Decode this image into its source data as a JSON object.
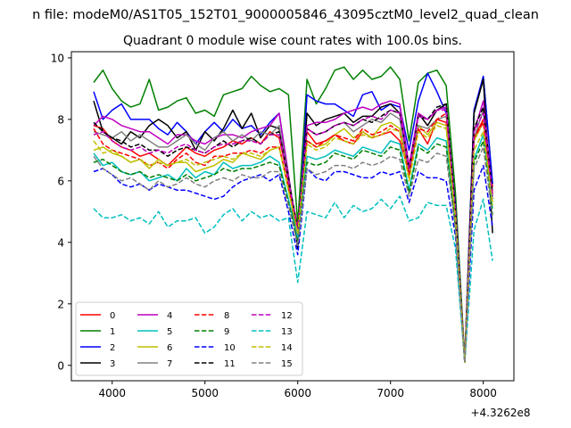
{
  "chart_data": {
    "type": "line",
    "suptitle": "n file: modeM0/AS1T05_152T01_9000005846_43095cztM0_level2_quad_clean",
    "title": "Quadrant 0 module wise count rates with 100.0s bins.",
    "xlabel": "",
    "ylabel": "",
    "x_offset_label": "+4.3262e8",
    "xlim": [
      3560,
      8330
    ],
    "ylim": [
      -0.5,
      10.2
    ],
    "xticks": [
      4000,
      5000,
      6000,
      7000,
      8000
    ],
    "yticks": [
      0,
      2,
      4,
      6,
      8,
      10
    ],
    "legend_position": "lower-left",
    "x": [
      3800,
      3900,
      4000,
      4100,
      4200,
      4300,
      4400,
      4500,
      4600,
      4700,
      4800,
      4900,
      5000,
      5100,
      5200,
      5300,
      5400,
      5500,
      5600,
      5700,
      5800,
      5900,
      6000,
      6100,
      6200,
      6300,
      6400,
      6500,
      6600,
      6700,
      6800,
      6900,
      7000,
      7100,
      7200,
      7300,
      7400,
      7500,
      7600,
      7700,
      7800,
      7900,
      8000,
      8100
    ],
    "series": [
      {
        "name": "0",
        "color": "#ff0000",
        "dash": "solid",
        "values": [
          7.8,
          7.7,
          7.3,
          7.1,
          7.0,
          6.8,
          6.9,
          6.7,
          6.5,
          6.8,
          7.1,
          6.9,
          6.8,
          7.0,
          7.1,
          7.3,
          7.2,
          7.4,
          7.2,
          7.6,
          7.4,
          6.0,
          4.5,
          7.6,
          7.2,
          7.3,
          7.5,
          7.3,
          7.2,
          7.6,
          7.4,
          7.5,
          7.6,
          7.3,
          6.3,
          7.7,
          7.2,
          8.0,
          7.9,
          4.8,
          0.1,
          7.4,
          8.0,
          5.8
        ]
      },
      {
        "name": "1",
        "color": "#008000",
        "dash": "solid",
        "values": [
          9.2,
          9.6,
          9.0,
          8.6,
          8.4,
          8.5,
          9.3,
          8.3,
          8.4,
          8.6,
          8.7,
          8.2,
          8.3,
          8.1,
          8.8,
          8.9,
          9.0,
          9.4,
          9.1,
          8.9,
          9.0,
          8.8,
          4.6,
          9.3,
          8.5,
          9.0,
          9.6,
          9.7,
          9.3,
          9.6,
          9.3,
          9.4,
          9.7,
          9.3,
          7.3,
          9.2,
          9.5,
          9.6,
          9.1,
          5.6,
          0.2,
          8.2,
          9.4,
          5.9
        ]
      },
      {
        "name": "2",
        "color": "#0000ff",
        "dash": "solid",
        "values": [
          8.9,
          8.0,
          8.3,
          8.5,
          8.0,
          8.0,
          8.0,
          7.7,
          7.5,
          7.9,
          7.6,
          7.2,
          7.6,
          7.9,
          7.6,
          8.0,
          7.7,
          7.8,
          7.5,
          7.9,
          8.2,
          6.2,
          3.8,
          8.8,
          8.6,
          8.5,
          8.5,
          8.3,
          8.1,
          8.8,
          8.9,
          8.3,
          8.5,
          8.4,
          7.0,
          8.6,
          9.5,
          8.9,
          8.2,
          5.2,
          0.1,
          8.3,
          9.4,
          5.9
        ]
      },
      {
        "name": "3",
        "color": "#000000",
        "dash": "solid",
        "values": [
          8.6,
          7.6,
          7.4,
          7.2,
          7.6,
          7.4,
          7.8,
          8.0,
          7.8,
          7.4,
          7.6,
          7.0,
          7.6,
          7.3,
          7.7,
          8.3,
          7.7,
          8.2,
          7.4,
          7.8,
          7.7,
          6.0,
          3.8,
          8.2,
          7.8,
          8.0,
          8.1,
          8.2,
          7.9,
          8.1,
          8.1,
          8.4,
          8.5,
          8.2,
          6.2,
          8.2,
          7.8,
          8.3,
          8.5,
          5.0,
          0.1,
          8.2,
          9.3,
          4.3
        ]
      },
      {
        "name": "4",
        "color": "#bf00bf",
        "dash": "solid",
        "values": [
          7.8,
          8.1,
          8.0,
          7.8,
          7.7,
          7.6,
          7.6,
          7.4,
          7.2,
          7.5,
          7.5,
          7.3,
          7.2,
          7.4,
          7.5,
          7.5,
          7.4,
          7.6,
          7.7,
          7.8,
          8.2,
          6.2,
          4.2,
          7.8,
          7.9,
          7.9,
          8.0,
          8.2,
          8.3,
          8.4,
          8.3,
          8.5,
          8.6,
          8.5,
          6.5,
          8.2,
          8.0,
          8.3,
          8.4,
          5.0,
          0.1,
          7.6,
          8.6,
          5.5
        ]
      },
      {
        "name": "5",
        "color": "#00bfbf",
        "dash": "solid",
        "values": [
          6.9,
          6.5,
          6.6,
          6.3,
          6.2,
          6.3,
          6.0,
          6.1,
          6.2,
          6.0,
          6.4,
          6.1,
          6.3,
          6.2,
          6.6,
          6.4,
          6.5,
          6.5,
          6.6,
          6.8,
          6.6,
          5.4,
          4.1,
          6.8,
          6.7,
          6.8,
          7.0,
          6.9,
          6.8,
          7.1,
          7.0,
          6.9,
          7.3,
          7.2,
          5.7,
          7.2,
          7.0,
          7.4,
          7.3,
          4.6,
          0.1,
          6.7,
          7.5,
          5.1
        ]
      },
      {
        "name": "6",
        "color": "#bfbf00",
        "dash": "solid",
        "values": [
          7.0,
          7.1,
          6.9,
          6.8,
          6.6,
          6.7,
          6.4,
          6.7,
          6.5,
          6.6,
          6.6,
          6.3,
          6.4,
          6.5,
          6.7,
          6.6,
          6.9,
          6.8,
          6.7,
          7.0,
          7.1,
          5.7,
          4.3,
          7.3,
          7.1,
          7.2,
          7.5,
          7.7,
          7.4,
          7.6,
          7.4,
          7.8,
          7.9,
          7.7,
          6.1,
          7.8,
          7.5,
          7.9,
          7.8,
          4.8,
          0.1,
          7.3,
          7.9,
          5.3
        ]
      },
      {
        "name": "7",
        "color": "#808080",
        "dash": "solid",
        "values": [
          7.6,
          7.5,
          7.4,
          7.6,
          7.3,
          7.5,
          7.3,
          7.1,
          7.1,
          7.3,
          7.5,
          7.2,
          7.0,
          7.4,
          7.6,
          7.3,
          7.5,
          7.3,
          7.6,
          7.5,
          7.8,
          6.1,
          4.4,
          7.7,
          7.5,
          7.6,
          7.8,
          7.9,
          7.6,
          7.8,
          8.0,
          7.9,
          8.2,
          8.0,
          6.3,
          7.8,
          7.7,
          8.0,
          8.1,
          5.1,
          0.1,
          7.4,
          8.3,
          5.4
        ]
      },
      {
        "name": "8",
        "color": "#ff0000",
        "dash": "dashed",
        "values": [
          7.7,
          7.2,
          7.0,
          6.9,
          6.8,
          6.7,
          6.5,
          6.6,
          6.4,
          6.7,
          6.9,
          6.6,
          6.5,
          6.8,
          6.8,
          6.9,
          6.9,
          7.0,
          6.9,
          7.1,
          7.1,
          5.8,
          4.5,
          7.3,
          7.1,
          7.3,
          7.5,
          7.4,
          7.3,
          7.7,
          7.5,
          7.6,
          7.8,
          7.6,
          6.2,
          7.7,
          7.6,
          8.0,
          8.2,
          5.0,
          0.1,
          7.4,
          7.9,
          5.6
        ]
      },
      {
        "name": "9",
        "color": "#008000",
        "dash": "dashed",
        "values": [
          6.6,
          6.7,
          6.5,
          6.3,
          6.2,
          6.3,
          6.1,
          6.2,
          6.1,
          6.0,
          6.2,
          6.0,
          6.1,
          6.2,
          6.4,
          6.3,
          6.4,
          6.4,
          6.5,
          6.6,
          6.5,
          5.3,
          4.0,
          6.6,
          6.5,
          6.6,
          6.9,
          6.8,
          6.7,
          7.0,
          6.9,
          6.8,
          7.1,
          7.0,
          5.6,
          7.1,
          6.9,
          7.2,
          7.1,
          4.5,
          0.1,
          6.6,
          7.3,
          4.9
        ]
      },
      {
        "name": "10",
        "color": "#0000ff",
        "dash": "dashed",
        "values": [
          6.3,
          6.4,
          6.2,
          5.9,
          5.8,
          5.9,
          5.7,
          5.9,
          5.8,
          5.7,
          5.7,
          5.6,
          5.5,
          5.4,
          5.5,
          5.8,
          6.0,
          6.1,
          6.2,
          6.0,
          6.2,
          5.0,
          3.6,
          6.4,
          6.1,
          6.0,
          6.3,
          6.3,
          6.2,
          6.1,
          6.1,
          6.3,
          6.2,
          6.3,
          5.3,
          6.3,
          6.1,
          6.1,
          6.0,
          4.2,
          0.1,
          5.7,
          6.5,
          4.5
        ]
      },
      {
        "name": "11",
        "color": "#000000",
        "dash": "dashed",
        "values": [
          7.9,
          7.6,
          7.4,
          7.3,
          7.1,
          7.2,
          7.0,
          7.0,
          6.8,
          7.0,
          7.1,
          7.0,
          6.9,
          7.1,
          7.3,
          7.1,
          7.3,
          7.4,
          7.2,
          7.5,
          7.6,
          6.1,
          4.4,
          7.7,
          7.5,
          7.6,
          7.8,
          7.9,
          7.8,
          8.0,
          7.9,
          8.1,
          8.3,
          8.2,
          6.4,
          8.1,
          8.0,
          8.4,
          8.5,
          5.1,
          0.1,
          7.7,
          8.4,
          5.6
        ]
      },
      {
        "name": "12",
        "color": "#bf00bf",
        "dash": "dashed",
        "values": [
          7.5,
          7.6,
          7.3,
          7.1,
          7.0,
          7.1,
          6.9,
          7.0,
          6.9,
          7.1,
          7.2,
          7.0,
          6.9,
          7.1,
          7.2,
          7.2,
          7.3,
          7.3,
          7.2,
          7.5,
          7.5,
          6.0,
          4.4,
          7.7,
          7.5,
          7.6,
          7.8,
          7.9,
          7.8,
          8.0,
          8.1,
          8.0,
          8.3,
          8.2,
          6.4,
          8.1,
          8.0,
          8.3,
          8.3,
          5.0,
          0.1,
          7.6,
          8.2,
          5.5
        ]
      },
      {
        "name": "13",
        "color": "#00bfbf",
        "dash": "dashed",
        "values": [
          5.1,
          4.8,
          4.8,
          4.9,
          4.7,
          4.8,
          4.6,
          5.0,
          4.5,
          4.7,
          4.7,
          4.8,
          4.3,
          4.5,
          4.9,
          5.1,
          4.7,
          5.0,
          4.8,
          4.9,
          4.7,
          4.8,
          2.7,
          5.0,
          4.9,
          4.8,
          5.3,
          4.8,
          5.2,
          5.0,
          5.1,
          5.4,
          5.1,
          5.5,
          4.7,
          4.8,
          5.3,
          5.2,
          5.2,
          3.8,
          0.1,
          4.4,
          5.4,
          3.4
        ]
      },
      {
        "name": "14",
        "color": "#bfbf00",
        "dash": "dashed",
        "values": [
          7.3,
          6.9,
          7.0,
          6.8,
          6.6,
          6.7,
          6.5,
          6.6,
          6.5,
          6.6,
          6.7,
          6.5,
          6.6,
          6.7,
          6.8,
          6.7,
          6.9,
          6.9,
          6.8,
          7.0,
          7.1,
          5.7,
          4.3,
          7.2,
          7.0,
          7.1,
          7.4,
          7.3,
          7.2,
          7.5,
          7.4,
          7.5,
          7.7,
          7.6,
          6.0,
          7.6,
          7.4,
          7.8,
          7.7,
          4.8,
          0.1,
          7.0,
          7.6,
          5.2
        ]
      },
      {
        "name": "15",
        "color": "#808080",
        "dash": "dashed",
        "values": [
          6.8,
          6.4,
          6.2,
          6.0,
          6.1,
          5.9,
          5.7,
          6.0,
          5.8,
          5.9,
          6.1,
          5.9,
          5.8,
          6.0,
          6.1,
          6.0,
          6.2,
          6.1,
          6.1,
          6.3,
          6.3,
          5.2,
          3.9,
          6.4,
          6.2,
          6.3,
          6.5,
          6.5,
          6.4,
          6.6,
          6.5,
          6.6,
          6.8,
          6.7,
          5.5,
          6.7,
          6.6,
          6.9,
          6.8,
          4.4,
          0.1,
          6.4,
          7.1,
          4.8
        ]
      }
    ]
  }
}
